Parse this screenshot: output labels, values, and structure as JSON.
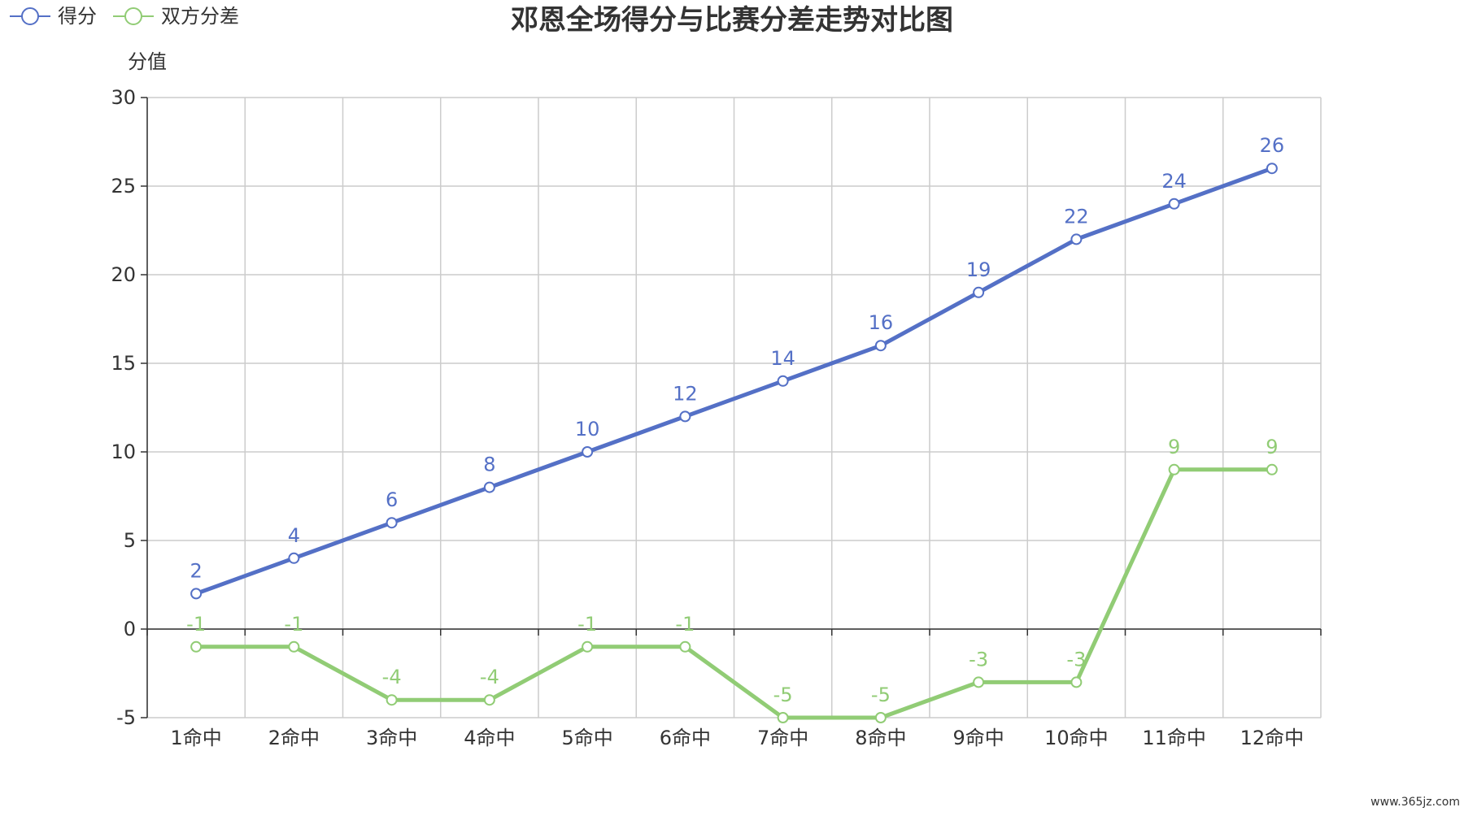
{
  "title": "邓恩全场得分与比赛分差走势对比图",
  "watermark": "www.365jz.com",
  "chart_data": {
    "type": "line",
    "title": "邓恩全场得分与比赛分差走势对比图",
    "ylabel": "分值",
    "xlabel": "",
    "categories": [
      "1命中",
      "2命中",
      "3命中",
      "4命中",
      "5命中",
      "6命中",
      "7命中",
      "8命中",
      "9命中",
      "10命中",
      "11命中",
      "12命中"
    ],
    "ylim": [
      -5,
      30
    ],
    "yticks": [
      -5,
      0,
      5,
      10,
      15,
      20,
      25,
      30
    ],
    "grid": true,
    "legend_position": "top-left",
    "series": [
      {
        "name": "得分",
        "color": "#5470c6",
        "values": [
          2,
          4,
          6,
          8,
          10,
          12,
          14,
          16,
          19,
          22,
          24,
          26
        ]
      },
      {
        "name": "双方分差",
        "color": "#91cc75",
        "values": [
          -1,
          -1,
          -4,
          -4,
          -1,
          -1,
          -5,
          -5,
          -3,
          -3,
          9,
          9
        ]
      }
    ]
  }
}
